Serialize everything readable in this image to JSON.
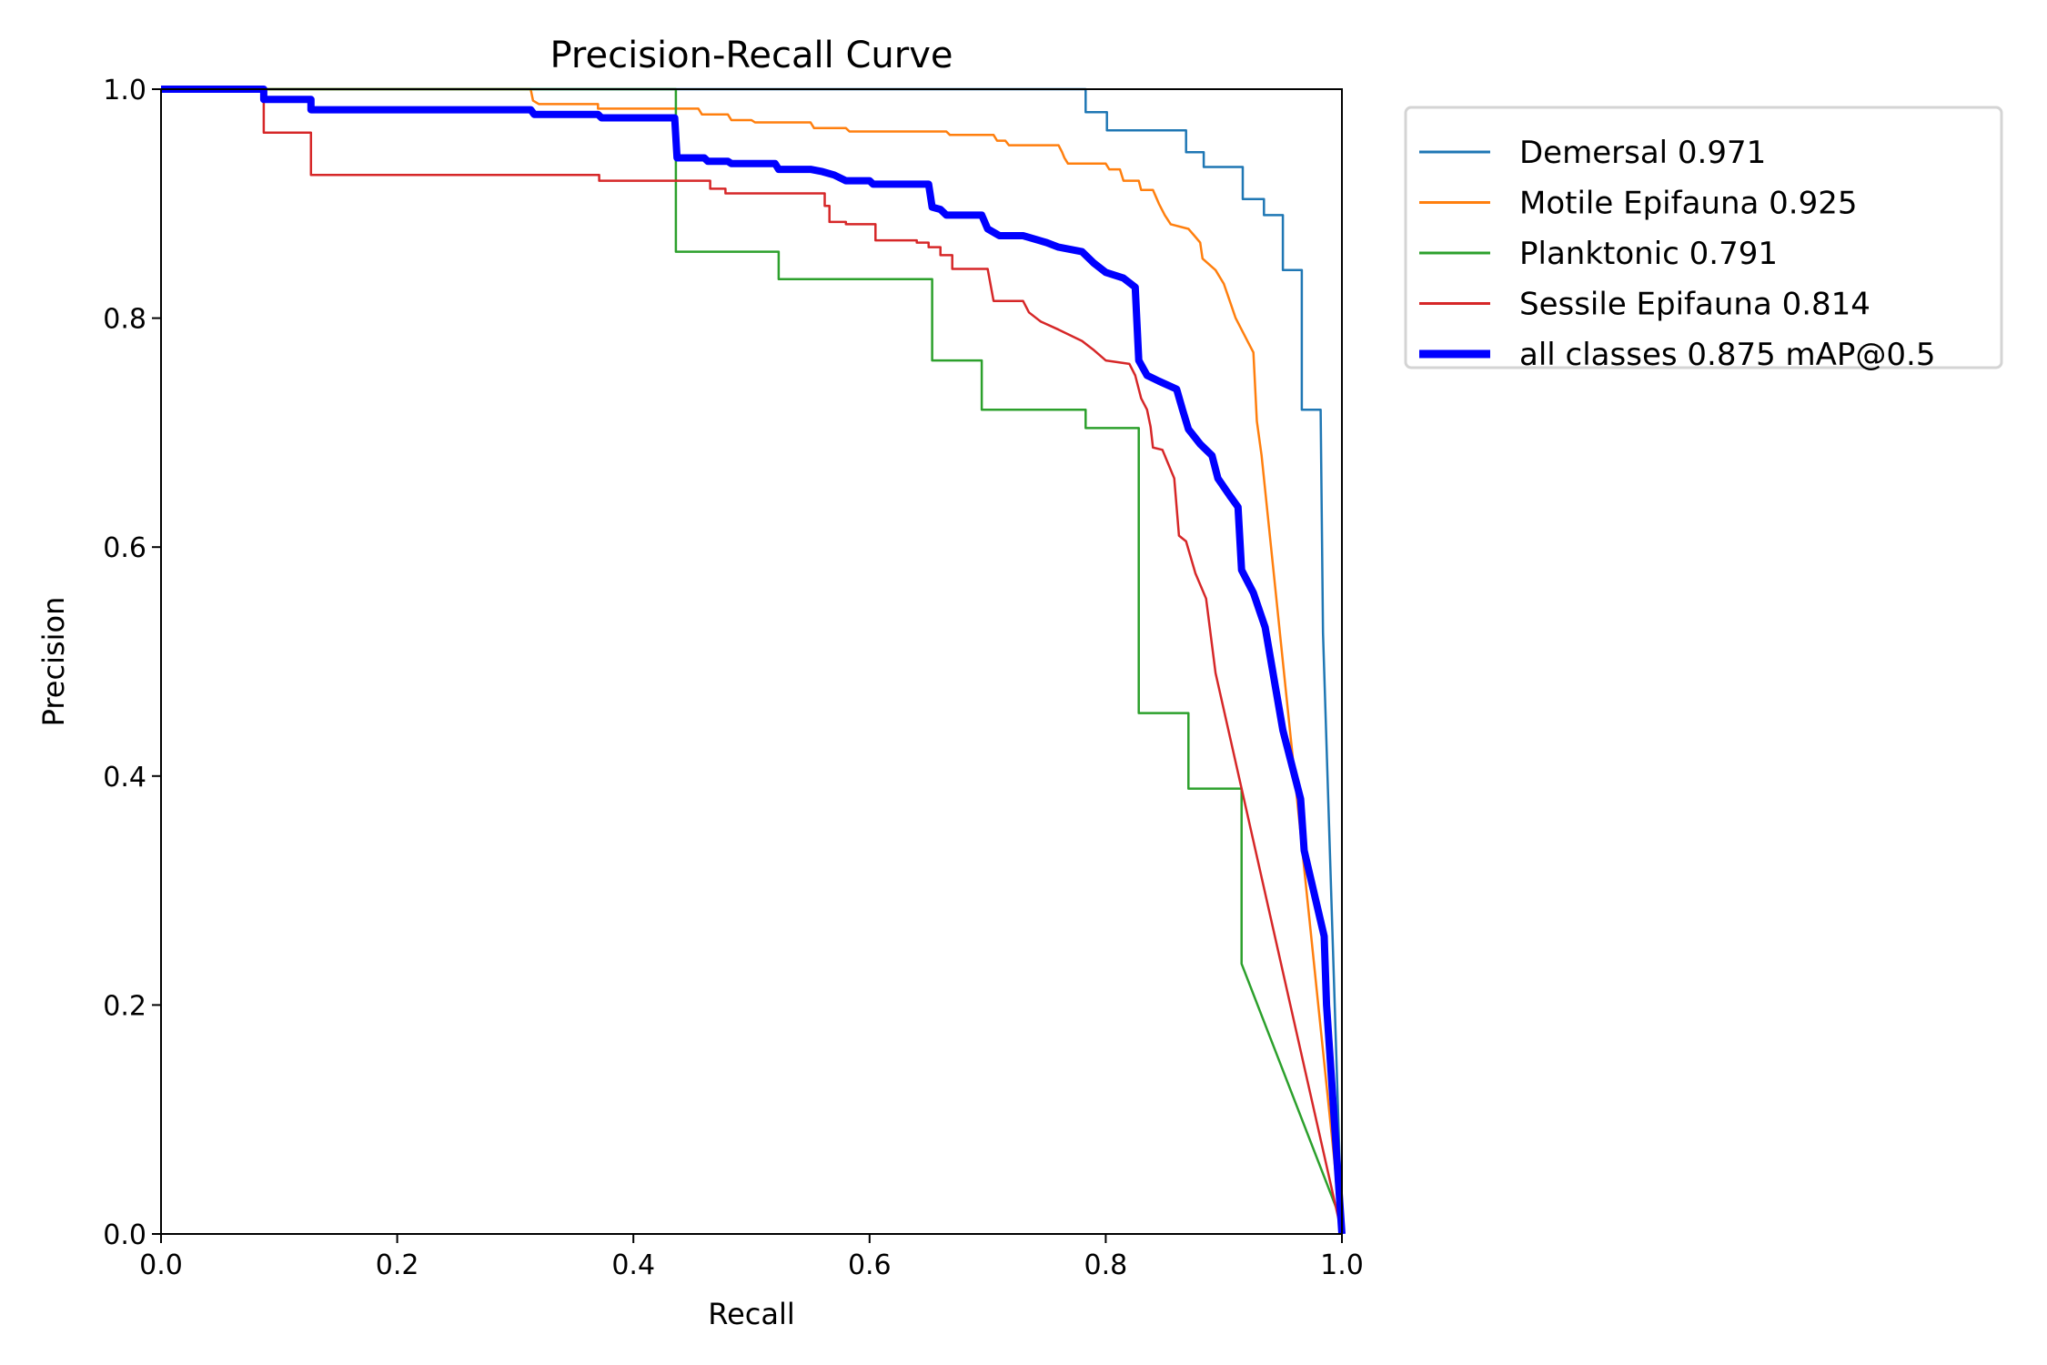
{
  "chart_data": {
    "type": "line",
    "title": "Precision-Recall Curve",
    "xlabel": "Recall",
    "ylabel": "Precision",
    "xlim": [
      0,
      1
    ],
    "ylim": [
      0,
      1
    ],
    "grid": false,
    "legend_placement": "outside-top-right",
    "xticks": [
      "0.0",
      "0.2",
      "0.4",
      "0.6",
      "0.8",
      "1.0"
    ],
    "yticks": [
      "0.0",
      "0.2",
      "0.4",
      "0.6",
      "0.8",
      "1.0"
    ],
    "series": [
      {
        "name": "Demersal 0.971",
        "color": "#1f77b4",
        "points": [
          [
            0,
            1
          ],
          [
            0.783,
            1
          ],
          [
            0.783,
            0.98
          ],
          [
            0.801,
            0.98
          ],
          [
            0.801,
            0.964
          ],
          [
            0.868,
            0.964
          ],
          [
            0.868,
            0.945
          ],
          [
            0.883,
            0.945
          ],
          [
            0.883,
            0.932
          ],
          [
            0.916,
            0.932
          ],
          [
            0.916,
            0.904
          ],
          [
            0.934,
            0.904
          ],
          [
            0.934,
            0.89
          ],
          [
            0.95,
            0.89
          ],
          [
            0.95,
            0.842
          ],
          [
            0.966,
            0.842
          ],
          [
            0.966,
            0.72
          ],
          [
            0.982,
            0.72
          ],
          [
            0.984,
            0.525
          ],
          [
            1.0,
            0
          ]
        ]
      },
      {
        "name": "Motile Epifauna 0.925",
        "color": "#ff7f0e",
        "points": [
          [
            0,
            1
          ],
          [
            0.313,
            1
          ],
          [
            0.315,
            0.99
          ],
          [
            0.32,
            0.987
          ],
          [
            0.37,
            0.987
          ],
          [
            0.37,
            0.983
          ],
          [
            0.455,
            0.983
          ],
          [
            0.458,
            0.978
          ],
          [
            0.48,
            0.978
          ],
          [
            0.483,
            0.973
          ],
          [
            0.5,
            0.973
          ],
          [
            0.503,
            0.971
          ],
          [
            0.55,
            0.971
          ],
          [
            0.553,
            0.966
          ],
          [
            0.58,
            0.966
          ],
          [
            0.583,
            0.963
          ],
          [
            0.665,
            0.963
          ],
          [
            0.668,
            0.96
          ],
          [
            0.705,
            0.96
          ],
          [
            0.708,
            0.955
          ],
          [
            0.715,
            0.955
          ],
          [
            0.718,
            0.951
          ],
          [
            0.76,
            0.951
          ],
          [
            0.763,
            0.945
          ],
          [
            0.765,
            0.94
          ],
          [
            0.768,
            0.935
          ],
          [
            0.8,
            0.935
          ],
          [
            0.803,
            0.93
          ],
          [
            0.812,
            0.93
          ],
          [
            0.815,
            0.92
          ],
          [
            0.828,
            0.92
          ],
          [
            0.83,
            0.912
          ],
          [
            0.84,
            0.912
          ],
          [
            0.845,
            0.9
          ],
          [
            0.85,
            0.89
          ],
          [
            0.855,
            0.882
          ],
          [
            0.87,
            0.878
          ],
          [
            0.875,
            0.872
          ],
          [
            0.88,
            0.866
          ],
          [
            0.882,
            0.852
          ],
          [
            0.893,
            0.842
          ],
          [
            0.9,
            0.83
          ],
          [
            0.905,
            0.815
          ],
          [
            0.91,
            0.8
          ],
          [
            0.915,
            0.79
          ],
          [
            0.92,
            0.78
          ],
          [
            0.925,
            0.77
          ],
          [
            0.928,
            0.71
          ],
          [
            0.932,
            0.68
          ],
          [
            0.94,
            0.6
          ],
          [
            0.98,
            0.2
          ],
          [
            1.0,
            0
          ]
        ]
      },
      {
        "name": "Planktonic 0.791",
        "color": "#2ca02c",
        "points": [
          [
            0,
            1
          ],
          [
            0.436,
            1
          ],
          [
            0.436,
            0.858
          ],
          [
            0.523,
            0.858
          ],
          [
            0.523,
            0.834
          ],
          [
            0.653,
            0.834
          ],
          [
            0.653,
            0.763
          ],
          [
            0.695,
            0.763
          ],
          [
            0.695,
            0.72
          ],
          [
            0.783,
            0.72
          ],
          [
            0.783,
            0.704
          ],
          [
            0.828,
            0.704
          ],
          [
            0.828,
            0.455
          ],
          [
            0.87,
            0.455
          ],
          [
            0.87,
            0.389
          ],
          [
            0.915,
            0.389
          ],
          [
            0.915,
            0.236
          ],
          [
            1.0,
            0.01
          ]
        ]
      },
      {
        "name": "Sessile Epifauna 0.814",
        "color": "#d62728",
        "points": [
          [
            0,
            1
          ],
          [
            0.087,
            1
          ],
          [
            0.087,
            0.962
          ],
          [
            0.127,
            0.962
          ],
          [
            0.127,
            0.925
          ],
          [
            0.371,
            0.925
          ],
          [
            0.371,
            0.92
          ],
          [
            0.465,
            0.92
          ],
          [
            0.465,
            0.913
          ],
          [
            0.478,
            0.913
          ],
          [
            0.478,
            0.909
          ],
          [
            0.562,
            0.909
          ],
          [
            0.562,
            0.898
          ],
          [
            0.566,
            0.898
          ],
          [
            0.566,
            0.884
          ],
          [
            0.58,
            0.884
          ],
          [
            0.58,
            0.882
          ],
          [
            0.605,
            0.882
          ],
          [
            0.605,
            0.868
          ],
          [
            0.64,
            0.868
          ],
          [
            0.64,
            0.866
          ],
          [
            0.65,
            0.866
          ],
          [
            0.65,
            0.862
          ],
          [
            0.66,
            0.862
          ],
          [
            0.66,
            0.855
          ],
          [
            0.67,
            0.855
          ],
          [
            0.67,
            0.843
          ],
          [
            0.7,
            0.843
          ],
          [
            0.705,
            0.815
          ],
          [
            0.73,
            0.815
          ],
          [
            0.735,
            0.805
          ],
          [
            0.745,
            0.797
          ],
          [
            0.76,
            0.79
          ],
          [
            0.78,
            0.78
          ],
          [
            0.79,
            0.772
          ],
          [
            0.8,
            0.763
          ],
          [
            0.82,
            0.76
          ],
          [
            0.825,
            0.75
          ],
          [
            0.83,
            0.73
          ],
          [
            0.835,
            0.72
          ],
          [
            0.838,
            0.705
          ],
          [
            0.84,
            0.687
          ],
          [
            0.848,
            0.685
          ],
          [
            0.858,
            0.66
          ],
          [
            0.862,
            0.61
          ],
          [
            0.868,
            0.605
          ],
          [
            0.876,
            0.577
          ],
          [
            0.885,
            0.555
          ],
          [
            0.893,
            0.49
          ],
          [
            1.0,
            0
          ]
        ]
      },
      {
        "name": "all classes 0.875 mAP@0.5",
        "color": "#0000ff",
        "points": [
          [
            0,
            1
          ],
          [
            0.087,
            1
          ],
          [
            0.087,
            0.991
          ],
          [
            0.127,
            0.991
          ],
          [
            0.127,
            0.982
          ],
          [
            0.313,
            0.982
          ],
          [
            0.316,
            0.978
          ],
          [
            0.37,
            0.978
          ],
          [
            0.373,
            0.975
          ],
          [
            0.435,
            0.975
          ],
          [
            0.437,
            0.94
          ],
          [
            0.46,
            0.94
          ],
          [
            0.463,
            0.937
          ],
          [
            0.48,
            0.937
          ],
          [
            0.483,
            0.935
          ],
          [
            0.52,
            0.935
          ],
          [
            0.523,
            0.93
          ],
          [
            0.55,
            0.93
          ],
          [
            0.56,
            0.928
          ],
          [
            0.57,
            0.925
          ],
          [
            0.58,
            0.92
          ],
          [
            0.6,
            0.92
          ],
          [
            0.603,
            0.917
          ],
          [
            0.65,
            0.917
          ],
          [
            0.653,
            0.897
          ],
          [
            0.66,
            0.895
          ],
          [
            0.665,
            0.89
          ],
          [
            0.695,
            0.89
          ],
          [
            0.7,
            0.878
          ],
          [
            0.71,
            0.872
          ],
          [
            0.73,
            0.872
          ],
          [
            0.75,
            0.866
          ],
          [
            0.76,
            0.862
          ],
          [
            0.78,
            0.858
          ],
          [
            0.79,
            0.848
          ],
          [
            0.8,
            0.84
          ],
          [
            0.815,
            0.835
          ],
          [
            0.825,
            0.827
          ],
          [
            0.828,
            0.763
          ],
          [
            0.835,
            0.75
          ],
          [
            0.845,
            0.745
          ],
          [
            0.86,
            0.738
          ],
          [
            0.865,
            0.72
          ],
          [
            0.87,
            0.703
          ],
          [
            0.88,
            0.69
          ],
          [
            0.89,
            0.68
          ],
          [
            0.895,
            0.66
          ],
          [
            0.905,
            0.645
          ],
          [
            0.912,
            0.635
          ],
          [
            0.915,
            0.58
          ],
          [
            0.925,
            0.56
          ],
          [
            0.935,
            0.53
          ],
          [
            0.94,
            0.5
          ],
          [
            0.95,
            0.44
          ],
          [
            0.965,
            0.38
          ],
          [
            0.968,
            0.335
          ],
          [
            0.985,
            0.26
          ],
          [
            0.987,
            0.2
          ],
          [
            1.0,
            0
          ]
        ]
      }
    ]
  }
}
